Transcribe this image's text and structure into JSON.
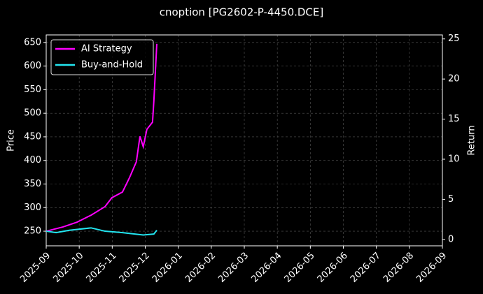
{
  "chart_data": {
    "type": "line",
    "title": "cnoption [PG2602-P-4450.DCE]",
    "ylabel": "Price",
    "y2label": "Return",
    "xlim": [
      0,
      12
    ],
    "xticks": [
      {
        "value": 0,
        "label": "2025-09"
      },
      {
        "value": 1,
        "label": "2025-10"
      },
      {
        "value": 2,
        "label": "2025-11"
      },
      {
        "value": 3,
        "label": "2025-12"
      },
      {
        "value": 4,
        "label": "2026-01"
      },
      {
        "value": 5,
        "label": "2026-02"
      },
      {
        "value": 6,
        "label": "2026-03"
      },
      {
        "value": 7,
        "label": "2026-04"
      },
      {
        "value": 8,
        "label": "2026-05"
      },
      {
        "value": 9,
        "label": "2026-06"
      },
      {
        "value": 10,
        "label": "2026-07"
      },
      {
        "value": 11,
        "label": "2026-08"
      },
      {
        "value": 12,
        "label": "2026-09"
      }
    ],
    "ylim": [
      219,
      666
    ],
    "yticks": [
      250,
      300,
      350,
      400,
      450,
      500,
      550,
      600,
      650
    ],
    "y2lim": [
      -0.8,
      25.5
    ],
    "y2ticks": [
      0,
      5,
      10,
      15,
      20,
      25
    ],
    "grid": true,
    "legend": "upper left",
    "series": [
      {
        "name": "AI Strategy",
        "color": "#ff00ff",
        "x": [
          0,
          0.51,
          0.93,
          1.36,
          1.78,
          1.99,
          2.31,
          2.52,
          2.73,
          2.84,
          2.94,
          3.05,
          3.22,
          3.26,
          3.35
        ],
        "values": [
          250,
          259,
          269,
          284,
          302,
          321,
          333,
          363,
          397,
          451,
          429,
          466,
          481,
          525,
          647
        ]
      },
      {
        "name": "Buy-and-Hold",
        "color": "#22e5f0",
        "x": [
          0,
          0.3,
          0.7,
          1.36,
          1.78,
          2.31,
          2.94,
          3.26,
          3.35
        ],
        "values": [
          250,
          247,
          252,
          257,
          250,
          247,
          242,
          244,
          252
        ]
      }
    ]
  }
}
